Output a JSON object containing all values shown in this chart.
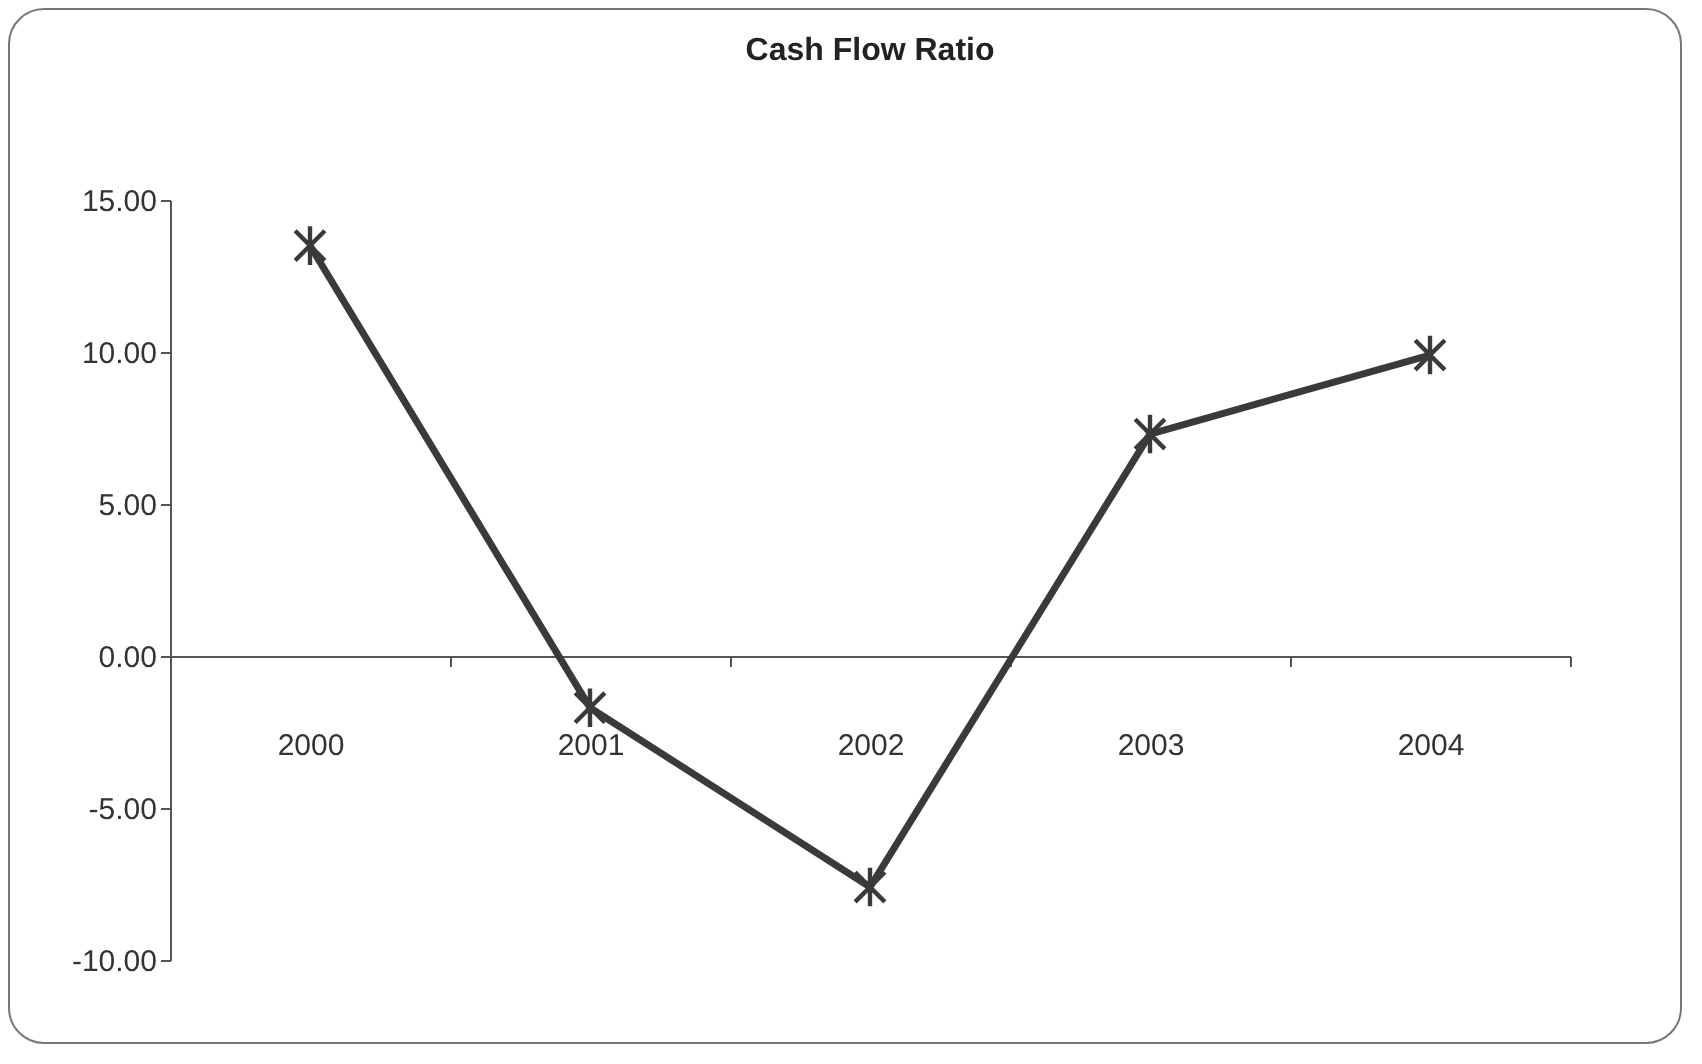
{
  "chart_data": {
    "type": "line",
    "title": "Cash Flow Ratio",
    "categories": [
      "2000",
      "2001",
      "2002",
      "2003",
      "2004"
    ],
    "series": [
      {
        "color": "#3a3a3a",
        "values": [
          13.5,
          -1.7,
          -7.6,
          7.3,
          9.9
        ]
      }
    ],
    "ylim": [
      -10,
      15
    ],
    "yticks": [
      {
        "value": -10,
        "label": "-10.00"
      },
      {
        "value": -5,
        "label": "-5.00"
      },
      {
        "value": 0,
        "label": "0.00"
      },
      {
        "value": 5,
        "label": "5.00"
      },
      {
        "value": 10,
        "label": "10.00"
      },
      {
        "value": 15,
        "label": "15.00"
      }
    ],
    "grid": false,
    "legend": false,
    "marker": "cross",
    "line_style": "solid"
  }
}
